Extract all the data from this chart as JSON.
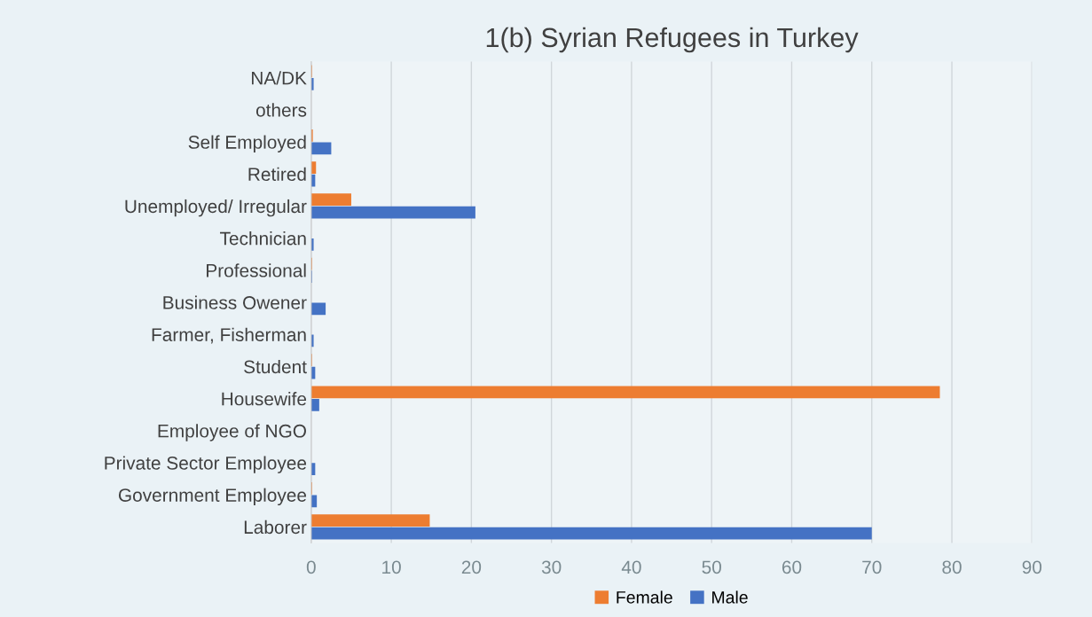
{
  "chart_data": {
    "type": "bar",
    "orientation": "horizontal",
    "title": "1(b) Syrian Refugees in Turkey",
    "categories": [
      "NA/DK",
      "others",
      "Self Employed",
      "Retired",
      "Unemployed/ Irregular",
      "Technician",
      "Professional",
      "Business Owener",
      "Farmer, Fisherman",
      "Student",
      "Housewife",
      "Employee of NGO",
      "Private Sector Employee",
      "Government Employee",
      "Laborer"
    ],
    "series": [
      {
        "name": "Female",
        "color": "#ed7d31",
        "values": [
          0.1,
          0,
          0.2,
          0.6,
          5.0,
          0,
          0.1,
          0,
          0,
          0.1,
          78.5,
          0,
          0,
          0.1,
          14.8
        ]
      },
      {
        "name": "Male",
        "color": "#4472c4",
        "values": [
          0.3,
          0,
          2.5,
          0.5,
          20.5,
          0.3,
          0.1,
          1.8,
          0.3,
          0.5,
          1.0,
          0,
          0.5,
          0.7,
          70
        ]
      }
    ],
    "xlim": [
      0,
      90
    ],
    "xticks": [
      0,
      10,
      20,
      30,
      40,
      50,
      60,
      70,
      80,
      90
    ],
    "grid": "x",
    "legend": "bottom"
  }
}
